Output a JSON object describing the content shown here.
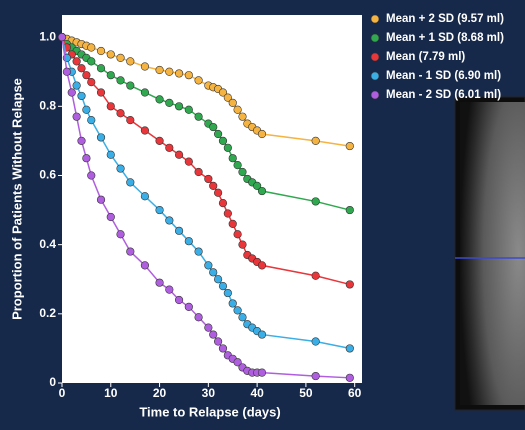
{
  "chart_data": {
    "type": "line",
    "xlabel": "Time to Relapse (days)",
    "ylabel": "Proportion of Patients Without Relapse",
    "x": [
      0,
      1,
      2,
      3,
      4,
      5,
      6,
      8,
      10,
      12,
      14,
      17,
      20,
      22,
      24,
      26,
      28,
      30,
      31,
      32,
      33,
      34,
      35,
      36,
      37,
      38,
      39,
      40,
      41,
      52,
      59
    ],
    "series": [
      {
        "name": "Mean + 2 SD (9.57 ml)",
        "color": "#f5b342",
        "values": [
          1.0,
          0.995,
          0.99,
          0.985,
          0.98,
          0.975,
          0.97,
          0.96,
          0.95,
          0.94,
          0.93,
          0.915,
          0.905,
          0.9,
          0.895,
          0.89,
          0.875,
          0.86,
          0.855,
          0.85,
          0.84,
          0.825,
          0.81,
          0.79,
          0.77,
          0.75,
          0.74,
          0.73,
          0.72,
          0.7,
          0.685
        ]
      },
      {
        "name": "Mean + 1 SD (8.68 ml)",
        "color": "#2fa84f",
        "values": [
          1.0,
          0.98,
          0.97,
          0.96,
          0.95,
          0.94,
          0.93,
          0.91,
          0.89,
          0.875,
          0.86,
          0.84,
          0.82,
          0.81,
          0.8,
          0.79,
          0.77,
          0.75,
          0.74,
          0.72,
          0.7,
          0.68,
          0.65,
          0.63,
          0.61,
          0.59,
          0.58,
          0.57,
          0.555,
          0.525,
          0.5
        ]
      },
      {
        "name": "Mean (7.79 ml)",
        "color": "#e8363b",
        "values": [
          1.0,
          0.97,
          0.95,
          0.93,
          0.91,
          0.89,
          0.87,
          0.84,
          0.8,
          0.78,
          0.76,
          0.73,
          0.7,
          0.68,
          0.66,
          0.64,
          0.61,
          0.59,
          0.57,
          0.55,
          0.52,
          0.49,
          0.46,
          0.43,
          0.4,
          0.37,
          0.36,
          0.35,
          0.34,
          0.31,
          0.285
        ]
      },
      {
        "name": "Mean - 1 SD (6.90 ml)",
        "color": "#3aaee6",
        "values": [
          1.0,
          0.94,
          0.9,
          0.86,
          0.83,
          0.79,
          0.76,
          0.71,
          0.66,
          0.62,
          0.58,
          0.54,
          0.5,
          0.47,
          0.44,
          0.41,
          0.38,
          0.34,
          0.32,
          0.3,
          0.28,
          0.26,
          0.23,
          0.21,
          0.19,
          0.17,
          0.16,
          0.15,
          0.14,
          0.12,
          0.1
        ]
      },
      {
        "name": "Mean - 2 SD (6.01 ml)",
        "color": "#b05ee0",
        "values": [
          1.0,
          0.9,
          0.84,
          0.77,
          0.7,
          0.65,
          0.6,
          0.53,
          0.48,
          0.43,
          0.38,
          0.34,
          0.29,
          0.27,
          0.24,
          0.22,
          0.19,
          0.16,
          0.14,
          0.12,
          0.1,
          0.08,
          0.07,
          0.06,
          0.045,
          0.035,
          0.03,
          0.03,
          0.03,
          0.02,
          0.015
        ]
      }
    ],
    "xlim": [
      0,
      61.5
    ],
    "xticks": [
      0,
      10,
      20,
      30,
      40,
      50,
      60
    ],
    "ylim": [
      0,
      1.064
    ],
    "yticks": [
      0,
      0.2,
      0.4,
      0.6,
      0.8,
      {
        "value": 1,
        "label": "1.0"
      }
    ],
    "grid": false,
    "legend": "right"
  }
}
